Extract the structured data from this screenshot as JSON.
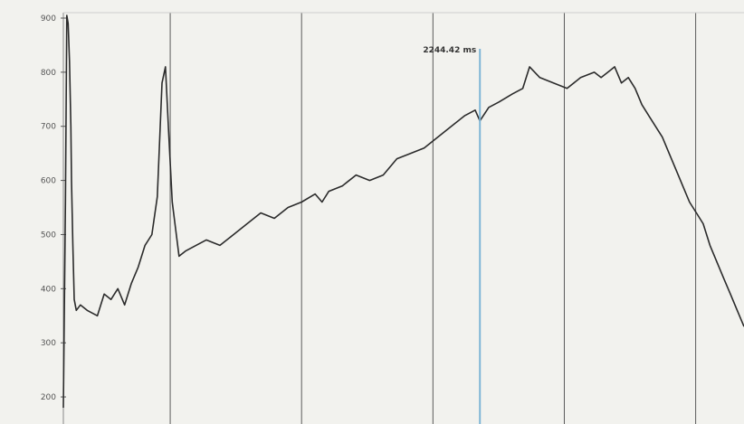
{
  "chart_data": {
    "type": "line",
    "title": "",
    "xlabel": "",
    "ylabel": "",
    "grid": "vertical",
    "legend": "none",
    "ylim": [
      150,
      910
    ],
    "ytick_labels": [
      "900",
      "800",
      "700",
      "600",
      "500",
      "400",
      "300",
      "200"
    ],
    "ytick_values": [
      900,
      800,
      700,
      600,
      500,
      400,
      300,
      200
    ],
    "marker": {
      "label": "2244.42 ms",
      "x": 0.612
    },
    "colors": {
      "line": "#2b2b2b",
      "marker": "#7fb6d6",
      "grid": "#5a5a5a",
      "background": "#f2f2ee"
    },
    "x": [
      0.0,
      0.003,
      0.005,
      0.007,
      0.009,
      0.011,
      0.012,
      0.014,
      0.016,
      0.019,
      0.025,
      0.035,
      0.05,
      0.06,
      0.07,
      0.08,
      0.09,
      0.1,
      0.11,
      0.12,
      0.13,
      0.138,
      0.145,
      0.15,
      0.155,
      0.16,
      0.17,
      0.18,
      0.195,
      0.21,
      0.23,
      0.25,
      0.27,
      0.29,
      0.31,
      0.33,
      0.35,
      0.37,
      0.38,
      0.39,
      0.41,
      0.43,
      0.45,
      0.47,
      0.49,
      0.51,
      0.53,
      0.55,
      0.57,
      0.59,
      0.605,
      0.612,
      0.625,
      0.64,
      0.66,
      0.675,
      0.685,
      0.7,
      0.72,
      0.74,
      0.76,
      0.78,
      0.79,
      0.8,
      0.81,
      0.82,
      0.83,
      0.84,
      0.85,
      0.86,
      0.87,
      0.88,
      0.89,
      0.9,
      0.91,
      0.92,
      0.93,
      0.94,
      0.95,
      0.96,
      0.97,
      0.98,
      0.99,
      1.0
    ],
    "y": [
      180,
      560,
      905,
      890,
      820,
      700,
      600,
      480,
      380,
      360,
      370,
      360,
      350,
      390,
      380,
      400,
      370,
      410,
      440,
      480,
      500,
      570,
      780,
      810,
      680,
      560,
      460,
      470,
      480,
      490,
      480,
      500,
      520,
      540,
      530,
      550,
      560,
      575,
      560,
      580,
      590,
      610,
      600,
      610,
      640,
      650,
      660,
      680,
      700,
      720,
      730,
      710,
      735,
      745,
      760,
      770,
      810,
      790,
      780,
      770,
      790,
      800,
      790,
      800,
      810,
      780,
      790,
      770,
      740,
      720,
      700,
      680,
      650,
      620,
      590,
      560,
      540,
      520,
      480,
      450,
      420,
      390,
      360,
      330
    ]
  }
}
